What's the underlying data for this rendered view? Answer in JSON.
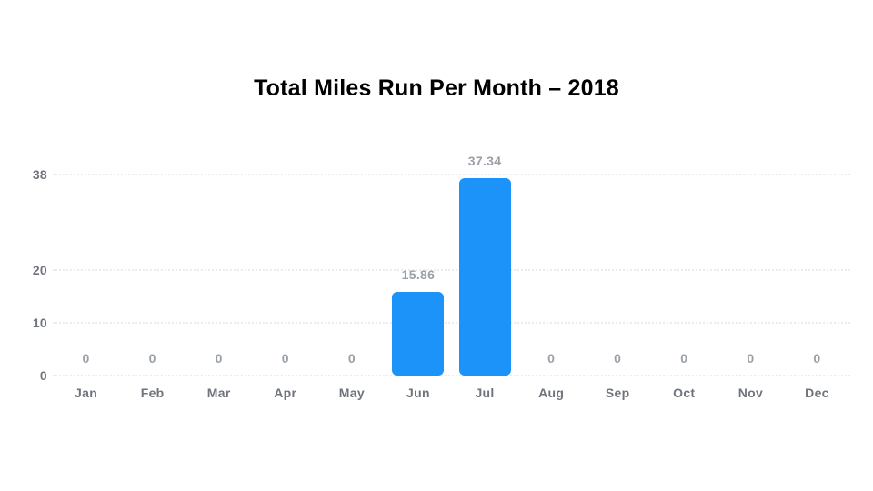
{
  "page": {
    "background_color": "#ffffff"
  },
  "chart_data": {
    "type": "bar",
    "title": "Total Miles Run Per Month – 2018",
    "categories": [
      "Jan",
      "Feb",
      "Mar",
      "Apr",
      "May",
      "Jun",
      "Jul",
      "Aug",
      "Sep",
      "Oct",
      "Nov",
      "Dec"
    ],
    "values": [
      0,
      0,
      0,
      0,
      0,
      15.86,
      37.34,
      0,
      0,
      0,
      0,
      0
    ],
    "data_labels": [
      "0",
      "0",
      "0",
      "0",
      "0",
      "15.86",
      "37.34",
      "0",
      "0",
      "0",
      "0",
      "0"
    ],
    "xlabel": "",
    "ylabel": "",
    "y_ticks": [
      0,
      10,
      20,
      38
    ],
    "ylim": [
      0,
      38
    ],
    "grid": "horizontal-dotted",
    "legend": "none",
    "colors": {
      "bar": "#1b93f9",
      "axis_tick_label": "#6f747c",
      "data_label": "#9aa0a8",
      "gridline": "#ececec",
      "title": "#000000"
    }
  }
}
